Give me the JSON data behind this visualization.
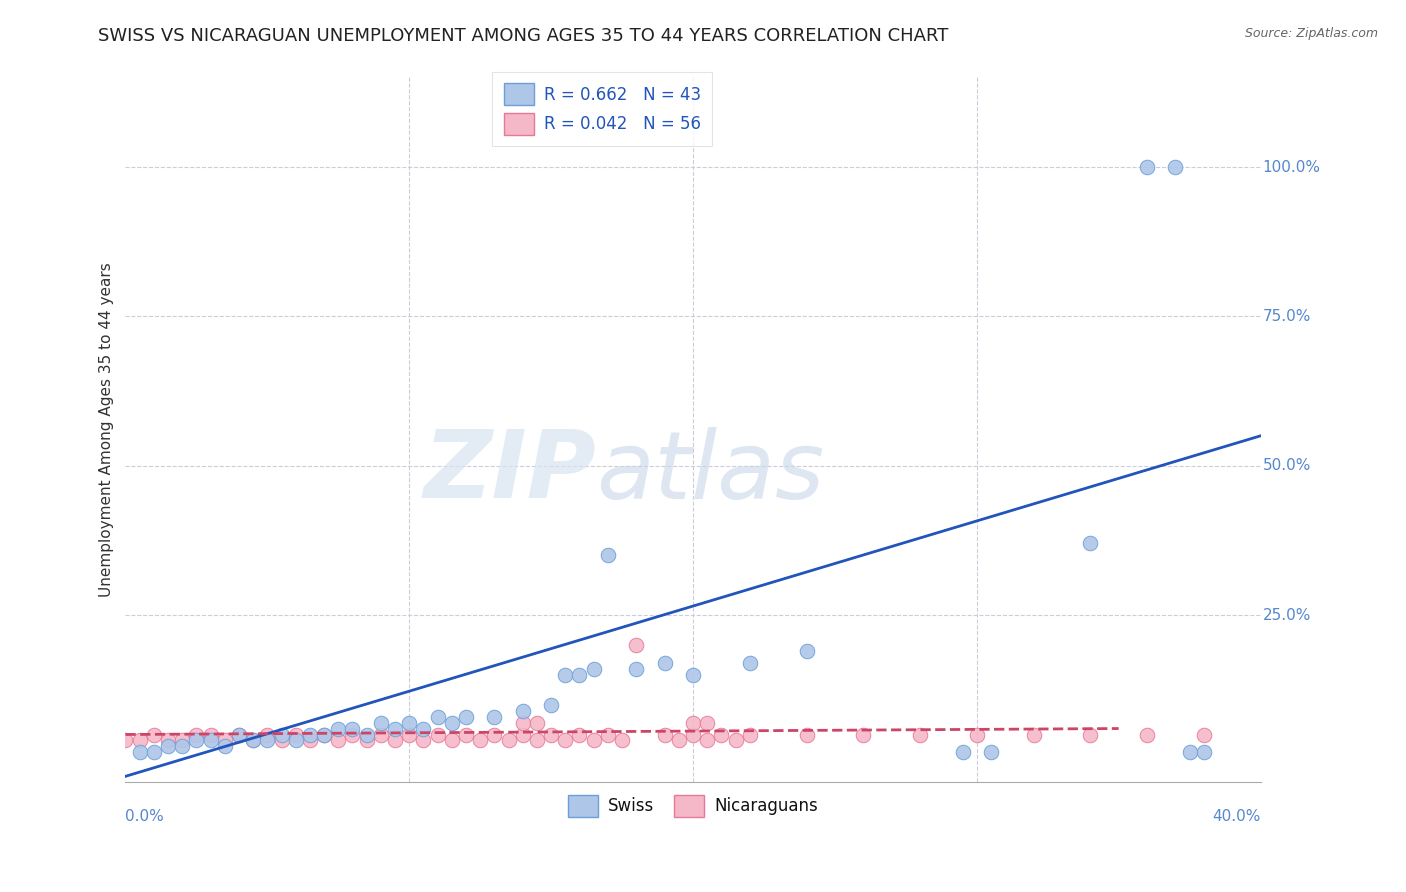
{
  "title": "SWISS VS NICARAGUAN UNEMPLOYMENT AMONG AGES 35 TO 44 YEARS CORRELATION CHART",
  "source": "Source: ZipAtlas.com",
  "ylabel": "Unemployment Among Ages 35 to 44 years",
  "ytick_labels": [
    "100.0%",
    "75.0%",
    "50.0%",
    "25.0%"
  ],
  "ytick_values": [
    1.0,
    0.75,
    0.5,
    0.25
  ],
  "xlim": [
    0.0,
    0.4
  ],
  "ylim": [
    -0.03,
    1.15
  ],
  "watermark_zip": "ZIP",
  "watermark_atlas": "atlas",
  "legend_swiss_R": "R = 0.662",
  "legend_swiss_N": "N = 43",
  "legend_nic_R": "R = 0.042",
  "legend_nic_N": "N = 56",
  "swiss_color": "#aec6e8",
  "swiss_edge_color": "#6a9fd8",
  "swiss_line_color": "#2255bb",
  "nicaraguan_color": "#f5b8c8",
  "nicaraguan_edge_color": "#e87898",
  "nicaraguan_line_color": "#cc4466",
  "background_color": "#ffffff",
  "grid_color": "#ccccdd",
  "title_fontsize": 13,
  "axis_label_fontsize": 11,
  "tick_fontsize": 11,
  "legend_fontsize": 12,
  "swiss_x": [
    0.005,
    0.01,
    0.015,
    0.02,
    0.025,
    0.03,
    0.035,
    0.04,
    0.045,
    0.05,
    0.055,
    0.06,
    0.065,
    0.07,
    0.075,
    0.08,
    0.085,
    0.09,
    0.095,
    0.1,
    0.105,
    0.11,
    0.115,
    0.12,
    0.13,
    0.14,
    0.15,
    0.155,
    0.16,
    0.165,
    0.17,
    0.18,
    0.19,
    0.2,
    0.22,
    0.24,
    0.295,
    0.305,
    0.34,
    0.36,
    0.37,
    0.375,
    0.38
  ],
  "swiss_y": [
    0.02,
    0.02,
    0.03,
    0.03,
    0.04,
    0.04,
    0.03,
    0.05,
    0.04,
    0.04,
    0.05,
    0.04,
    0.05,
    0.05,
    0.06,
    0.06,
    0.05,
    0.07,
    0.06,
    0.07,
    0.06,
    0.08,
    0.07,
    0.08,
    0.08,
    0.09,
    0.1,
    0.15,
    0.15,
    0.16,
    0.35,
    0.16,
    0.17,
    0.15,
    0.17,
    0.19,
    0.02,
    0.02,
    0.37,
    1.0,
    1.0,
    0.02,
    0.02
  ],
  "nic_x": [
    0.0,
    0.005,
    0.01,
    0.015,
    0.02,
    0.025,
    0.03,
    0.035,
    0.04,
    0.045,
    0.05,
    0.055,
    0.06,
    0.065,
    0.07,
    0.075,
    0.08,
    0.085,
    0.09,
    0.095,
    0.1,
    0.105,
    0.11,
    0.115,
    0.12,
    0.125,
    0.13,
    0.135,
    0.14,
    0.145,
    0.15,
    0.155,
    0.16,
    0.165,
    0.17,
    0.175,
    0.18,
    0.19,
    0.195,
    0.2,
    0.205,
    0.21,
    0.215,
    0.22,
    0.14,
    0.145,
    0.2,
    0.205,
    0.24,
    0.26,
    0.28,
    0.3,
    0.32,
    0.34,
    0.36,
    0.38
  ],
  "nic_y": [
    0.04,
    0.04,
    0.05,
    0.04,
    0.04,
    0.05,
    0.05,
    0.04,
    0.05,
    0.04,
    0.05,
    0.04,
    0.05,
    0.04,
    0.05,
    0.04,
    0.05,
    0.04,
    0.05,
    0.04,
    0.05,
    0.04,
    0.05,
    0.04,
    0.05,
    0.04,
    0.05,
    0.04,
    0.05,
    0.04,
    0.05,
    0.04,
    0.05,
    0.04,
    0.05,
    0.04,
    0.2,
    0.05,
    0.04,
    0.05,
    0.04,
    0.05,
    0.04,
    0.05,
    0.07,
    0.07,
    0.07,
    0.07,
    0.05,
    0.05,
    0.05,
    0.05,
    0.05,
    0.05,
    0.05,
    0.05
  ],
  "swiss_line_x": [
    0.0,
    0.4
  ],
  "swiss_line_y": [
    -0.02,
    0.55
  ],
  "nic_line_x": [
    0.0,
    0.35
  ],
  "nic_line_y": [
    0.05,
    0.06
  ]
}
